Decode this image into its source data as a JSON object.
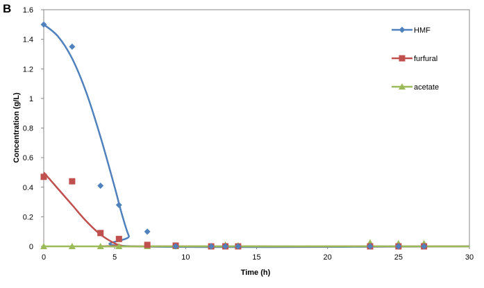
{
  "chart_data": {
    "type": "scatter",
    "panel_label": "B",
    "title": "",
    "xlabel": "Time (h)",
    "ylabel": "Concentration (g/L)",
    "xlim": [
      0,
      30
    ],
    "ylim": [
      0,
      1.6
    ],
    "xticks": [
      0,
      5,
      10,
      15,
      20,
      25,
      30
    ],
    "yticks": [
      0,
      0.2,
      0.4,
      0.6,
      0.8,
      1,
      1.2,
      1.4,
      1.6
    ],
    "xtick_labels": [
      "0",
      "5",
      "10",
      "15",
      "20",
      "25",
      "30"
    ],
    "ytick_labels": [
      "0",
      "0.2",
      "0.4",
      "0.6",
      "0.8",
      "1",
      "1.2",
      "1.4",
      "1.6"
    ],
    "grid": false,
    "legend_position": "right",
    "series": [
      {
        "name": "HMF",
        "color": "#4f81bd",
        "marker": "diamond",
        "points": [
          [
            0,
            1.5
          ],
          [
            2,
            1.35
          ],
          [
            4,
            0.41
          ],
          [
            5.3,
            0.28
          ],
          [
            7.3,
            0.1
          ],
          [
            9.3,
            0.0
          ],
          [
            11.8,
            0.0
          ],
          [
            12.8,
            0.0
          ],
          [
            13.7,
            0.0
          ],
          [
            23,
            0.0
          ],
          [
            25,
            0.0
          ],
          [
            26.8,
            0.0
          ]
        ],
        "fit": [
          [
            0,
            1.5
          ],
          [
            1,
            1.42
          ],
          [
            2,
            1.27
          ],
          [
            3,
            1.04
          ],
          [
            4,
            0.74
          ],
          [
            5,
            0.4
          ],
          [
            5.5,
            0.22
          ],
          [
            6,
            0.07
          ],
          [
            6.5,
            0.0
          ],
          [
            30,
            0.0
          ]
        ]
      },
      {
        "name": "furfural",
        "color": "#c0504d",
        "marker": "square",
        "points": [
          [
            0,
            0.47
          ],
          [
            2,
            0.44
          ],
          [
            4,
            0.09
          ],
          [
            5.3,
            0.05
          ],
          [
            7.3,
            0.01
          ],
          [
            9.3,
            0.005
          ],
          [
            11.8,
            0.0
          ],
          [
            12.8,
            0.0
          ],
          [
            13.7,
            0.0
          ],
          [
            23,
            0.0
          ],
          [
            25,
            0.0
          ],
          [
            26.8,
            0.0
          ]
        ],
        "fit": [
          [
            0,
            0.5
          ],
          [
            1,
            0.39
          ],
          [
            2,
            0.28
          ],
          [
            3,
            0.17
          ],
          [
            4,
            0.08
          ],
          [
            5,
            0.02
          ],
          [
            5.5,
            0.005
          ],
          [
            6,
            0.0
          ],
          [
            30,
            0.0
          ]
        ]
      },
      {
        "name": "acetate",
        "color": "#9bbb59",
        "marker": "triangle",
        "points": [
          [
            0,
            0.0
          ],
          [
            2,
            0.0
          ],
          [
            4,
            0.0
          ],
          [
            5.3,
            0.0
          ],
          [
            7.3,
            0.0
          ],
          [
            9.3,
            0.0
          ],
          [
            11.8,
            0.0
          ],
          [
            12.8,
            0.01
          ],
          [
            13.7,
            0.005
          ],
          [
            23,
            0.025
          ],
          [
            25,
            0.02
          ],
          [
            26.8,
            0.02
          ]
        ],
        "fit": [
          [
            0,
            0.0
          ],
          [
            30,
            0.0
          ]
        ]
      }
    ]
  }
}
